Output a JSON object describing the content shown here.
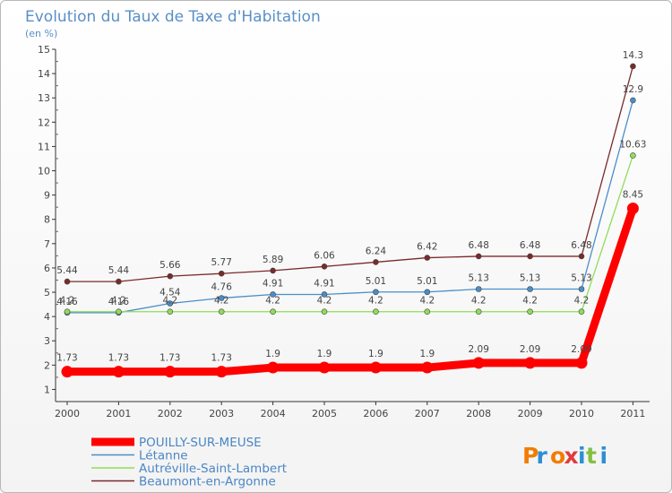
{
  "chart_data": {
    "type": "line",
    "title": "Evolution du Taux de Taxe d'Habitation",
    "subtitle": "(en %)",
    "x": [
      "2000",
      "2001",
      "2002",
      "2003",
      "2004",
      "2005",
      "2006",
      "2007",
      "2008",
      "2009",
      "2010",
      "2011"
    ],
    "ylim": [
      0.5,
      15
    ],
    "yticks": [
      "1",
      "2",
      "3",
      "4",
      "5",
      "6",
      "7",
      "8",
      "9",
      "10",
      "11",
      "12",
      "13",
      "14",
      "15"
    ],
    "grid": false,
    "legend_position": "bottom-left",
    "series": [
      {
        "name": "POUILLY-SUR-MEUSE",
        "color": "#ff0000",
        "values": [
          1.73,
          1.73,
          1.73,
          1.73,
          1.9,
          1.9,
          1.9,
          1.9,
          2.09,
          2.09,
          2.09,
          8.45
        ],
        "labels": [
          "1.73",
          "1.73",
          "1.73",
          "1.73",
          "1.9",
          "1.9",
          "1.9",
          "1.9",
          "2.09",
          "2.09",
          "2.09",
          "8.45"
        ]
      },
      {
        "name": "Létanne",
        "color": "#4a8ec9",
        "values": [
          4.16,
          4.16,
          4.54,
          4.76,
          4.91,
          4.91,
          5.01,
          5.01,
          5.13,
          5.13,
          5.13,
          12.9
        ],
        "labels": [
          "4.16",
          "4.16",
          "4.54",
          "4.76",
          "4.91",
          "4.91",
          "5.01",
          "5.01",
          "5.13",
          "5.13",
          "5.13",
          "12.9"
        ]
      },
      {
        "name": "Autréville-Saint-Lambert",
        "color": "#90dc5a",
        "values": [
          4.2,
          4.2,
          4.2,
          4.2,
          4.2,
          4.2,
          4.2,
          4.2,
          4.2,
          4.2,
          4.2,
          10.63
        ],
        "labels": [
          "4.2",
          "4.2",
          "4.2",
          "4.2",
          "4.2",
          "4.2",
          "4.2",
          "4.2",
          "4.2",
          "4.2",
          "4.2",
          "10.63"
        ]
      },
      {
        "name": "Beaumont-en-Argonne",
        "color": "#7a2a2a",
        "values": [
          5.44,
          5.44,
          5.66,
          5.77,
          5.89,
          6.06,
          6.24,
          6.42,
          6.48,
          6.48,
          6.48,
          14.3
        ],
        "labels": [
          "5.44",
          "5.44",
          "5.66",
          "5.77",
          "5.89",
          "6.06",
          "6.24",
          "6.42",
          "6.48",
          "6.48",
          "6.48",
          "14.3"
        ]
      }
    ]
  },
  "logo": {
    "text": "Proxiti",
    "colors": [
      "#f07d00",
      "#2b8ed6",
      "#f07d00",
      "#e23b3b",
      "#2b8ed6",
      "#83c041",
      "#2b8ed6"
    ]
  }
}
